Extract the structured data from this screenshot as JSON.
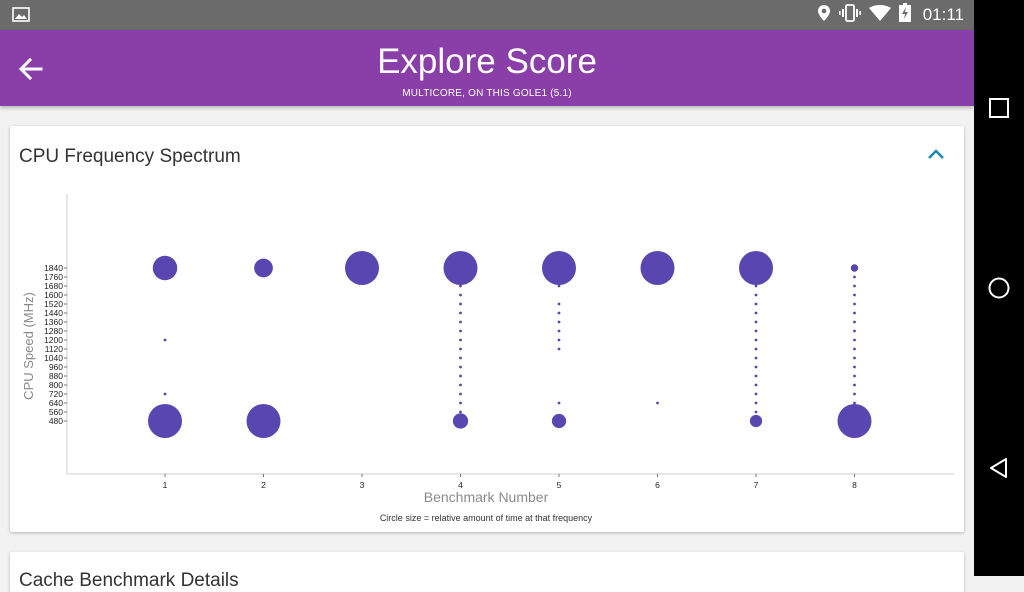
{
  "status_bar": {
    "time": "01:11",
    "icons": [
      "image-icon",
      "location-icon",
      "vibrate-icon",
      "wifi-icon",
      "battery-charging-icon"
    ]
  },
  "app_bar": {
    "title": "Explore Score",
    "subtitle": "MULTICORE, ON THIS GOLE1 (5.1)",
    "back_icon": "arrow-left-icon"
  },
  "card": {
    "title": "CPU Frequency Spectrum",
    "collapse_icon": "chevron-up-icon"
  },
  "next_card": {
    "title": "Cache Benchmark Details"
  },
  "nav_bar": {
    "icons": [
      "recents-square-icon",
      "home-circle-icon",
      "back-triangle-icon"
    ]
  },
  "colors": {
    "status_bar": "#6b6b6b",
    "app_bar": "#8a3ea8",
    "bubble": "#5a46b0",
    "accent": "#1e88b4"
  },
  "chart_data": {
    "type": "scatter",
    "xlabel": "Benchmark Number",
    "ylabel": "CPU Speed (MHz)",
    "note": "Circle size = relative amount of time at that frequency",
    "x_ticks": [
      1,
      2,
      3,
      4,
      5,
      6,
      7,
      8
    ],
    "y_ticks": [
      480,
      560,
      640,
      720,
      800,
      880,
      960,
      1040,
      1120,
      1200,
      1280,
      1360,
      1440,
      1520,
      1600,
      1680,
      1760,
      1840
    ],
    "grid": false,
    "series": [
      {
        "x": 1,
        "points": [
          {
            "mhz": 1840,
            "size": 0.72
          },
          {
            "mhz": 1200,
            "size": 0.08
          },
          {
            "mhz": 720,
            "size": 0.06
          },
          {
            "mhz": 480,
            "size": 1.0
          }
        ]
      },
      {
        "x": 2,
        "points": [
          {
            "mhz": 1840,
            "size": 0.55
          },
          {
            "mhz": 480,
            "size": 1.0
          }
        ]
      },
      {
        "x": 3,
        "points": [
          {
            "mhz": 1840,
            "size": 1.0
          }
        ]
      },
      {
        "x": 4,
        "points": [
          {
            "mhz": 1840,
            "size": 1.0
          },
          {
            "mhz": 1680,
            "size": 0.05
          },
          {
            "mhz": 1600,
            "size": 0.05
          },
          {
            "mhz": 1520,
            "size": 0.05
          },
          {
            "mhz": 1440,
            "size": 0.05
          },
          {
            "mhz": 1360,
            "size": 0.05
          },
          {
            "mhz": 1280,
            "size": 0.05
          },
          {
            "mhz": 1200,
            "size": 0.05
          },
          {
            "mhz": 1120,
            "size": 0.05
          },
          {
            "mhz": 1040,
            "size": 0.05
          },
          {
            "mhz": 960,
            "size": 0.05
          },
          {
            "mhz": 880,
            "size": 0.05
          },
          {
            "mhz": 800,
            "size": 0.05
          },
          {
            "mhz": 720,
            "size": 0.05
          },
          {
            "mhz": 640,
            "size": 0.05
          },
          {
            "mhz": 560,
            "size": 0.05
          },
          {
            "mhz": 480,
            "size": 0.45
          }
        ]
      },
      {
        "x": 5,
        "points": [
          {
            "mhz": 1840,
            "size": 1.0
          },
          {
            "mhz": 1680,
            "size": 0.05
          },
          {
            "mhz": 1520,
            "size": 0.06
          },
          {
            "mhz": 1440,
            "size": 0.06
          },
          {
            "mhz": 1360,
            "size": 0.07
          },
          {
            "mhz": 1280,
            "size": 0.07
          },
          {
            "mhz": 1200,
            "size": 0.06
          },
          {
            "mhz": 1120,
            "size": 0.06
          },
          {
            "mhz": 640,
            "size": 0.06
          },
          {
            "mhz": 480,
            "size": 0.42
          }
        ]
      },
      {
        "x": 6,
        "points": [
          {
            "mhz": 1840,
            "size": 1.0
          },
          {
            "mhz": 640,
            "size": 0.06
          }
        ]
      },
      {
        "x": 7,
        "points": [
          {
            "mhz": 1840,
            "size": 1.0
          },
          {
            "mhz": 1680,
            "size": 0.05
          },
          {
            "mhz": 1600,
            "size": 0.05
          },
          {
            "mhz": 1520,
            "size": 0.05
          },
          {
            "mhz": 1440,
            "size": 0.05
          },
          {
            "mhz": 1360,
            "size": 0.05
          },
          {
            "mhz": 1280,
            "size": 0.05
          },
          {
            "mhz": 1200,
            "size": 0.05
          },
          {
            "mhz": 1120,
            "size": 0.05
          },
          {
            "mhz": 1040,
            "size": 0.05
          },
          {
            "mhz": 960,
            "size": 0.05
          },
          {
            "mhz": 880,
            "size": 0.05
          },
          {
            "mhz": 800,
            "size": 0.05
          },
          {
            "mhz": 720,
            "size": 0.05
          },
          {
            "mhz": 640,
            "size": 0.05
          },
          {
            "mhz": 560,
            "size": 0.05
          },
          {
            "mhz": 480,
            "size": 0.36
          }
        ]
      },
      {
        "x": 8,
        "points": [
          {
            "mhz": 1840,
            "size": 0.22
          },
          {
            "mhz": 1760,
            "size": 0.07
          },
          {
            "mhz": 1680,
            "size": 0.07
          },
          {
            "mhz": 1600,
            "size": 0.07
          },
          {
            "mhz": 1520,
            "size": 0.07
          },
          {
            "mhz": 1440,
            "size": 0.07
          },
          {
            "mhz": 1360,
            "size": 0.07
          },
          {
            "mhz": 1280,
            "size": 0.07
          },
          {
            "mhz": 1200,
            "size": 0.07
          },
          {
            "mhz": 1120,
            "size": 0.07
          },
          {
            "mhz": 1040,
            "size": 0.07
          },
          {
            "mhz": 960,
            "size": 0.07
          },
          {
            "mhz": 880,
            "size": 0.07
          },
          {
            "mhz": 800,
            "size": 0.07
          },
          {
            "mhz": 720,
            "size": 0.07
          },
          {
            "mhz": 640,
            "size": 0.07
          },
          {
            "mhz": 560,
            "size": 0.07
          },
          {
            "mhz": 480,
            "size": 1.0
          }
        ]
      }
    ]
  }
}
